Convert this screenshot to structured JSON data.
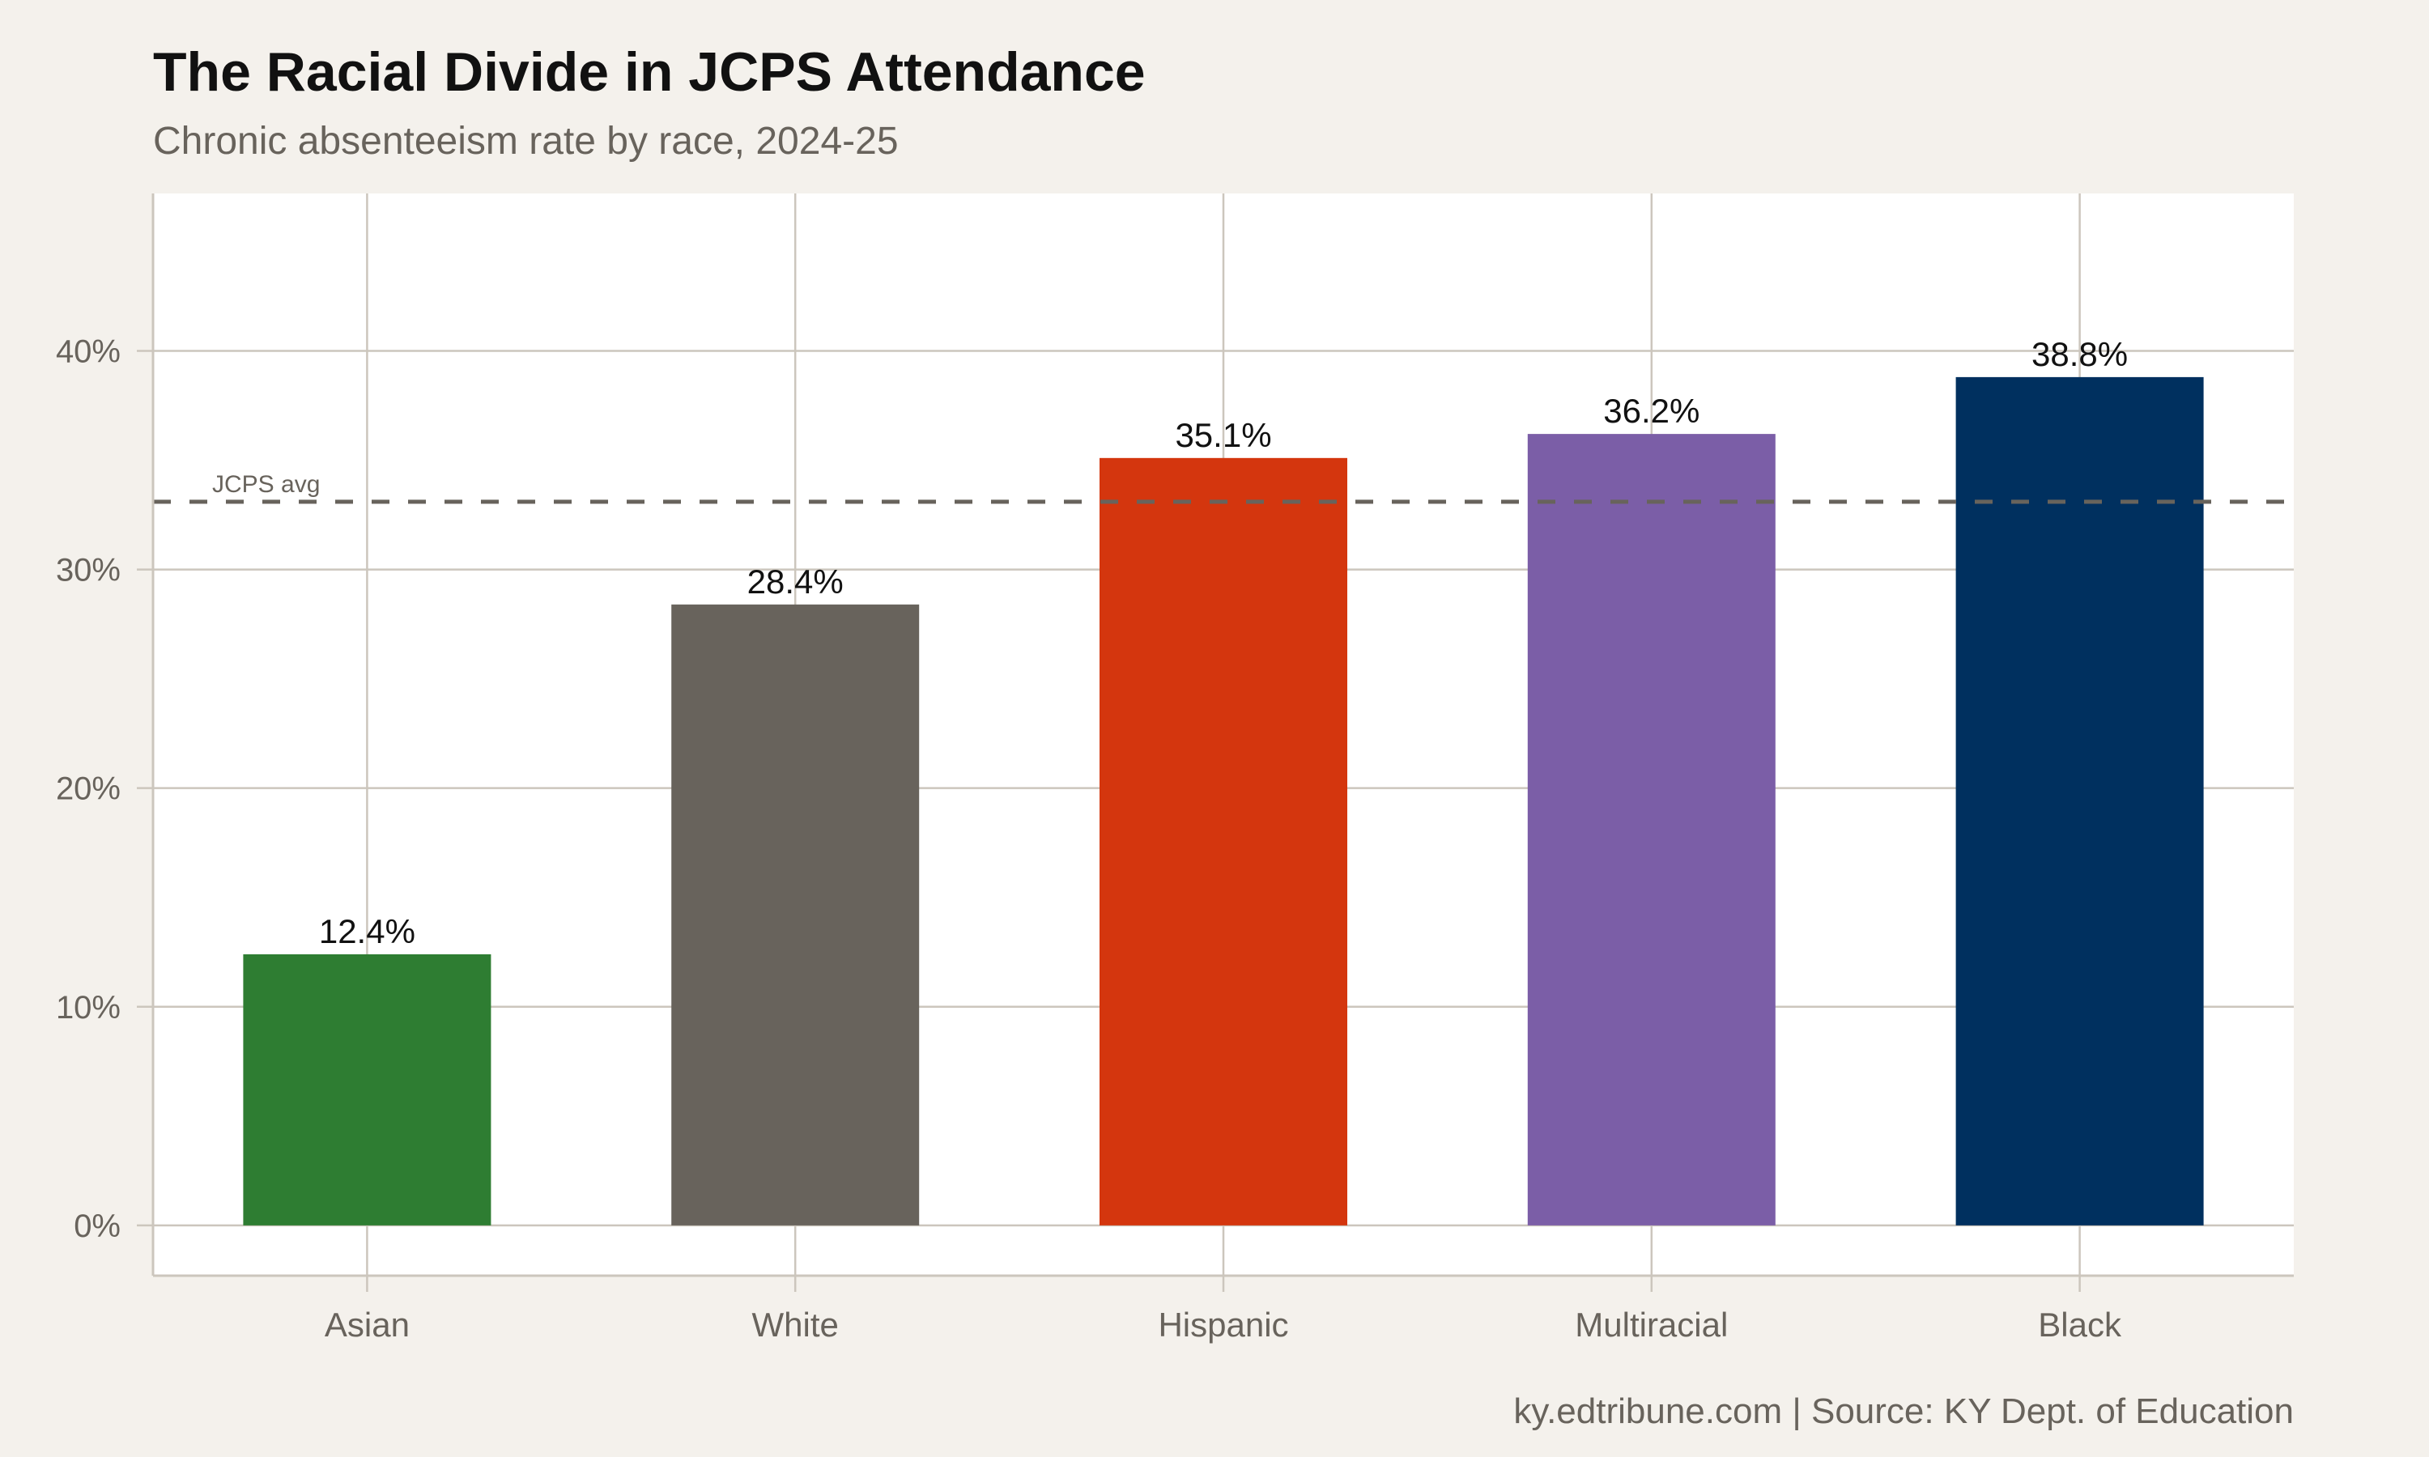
{
  "chart_data": {
    "type": "bar",
    "title": "The Racial Divide in JCPS Attendance",
    "subtitle": "Chronic absenteeism rate by race, 2024-25",
    "caption": "ky.edtribune.com | Source: KY Dept. of Education",
    "xlabel": "",
    "ylabel": "",
    "categories": [
      "Asian",
      "White",
      "Hispanic",
      "Multiracial",
      "Black"
    ],
    "values": [
      12.4,
      28.4,
      35.1,
      36.2,
      38.8
    ],
    "data_labels": [
      "12.4%",
      "28.4%",
      "35.1%",
      "36.2%",
      "38.8%"
    ],
    "colors": [
      "#2e7d32",
      "#68635c",
      "#d4360e",
      "#7b5ea7",
      "#00305f"
    ],
    "ylim": [
      -2.3,
      47.2
    ],
    "yticks": [
      0,
      10,
      20,
      30,
      40
    ],
    "ytick_labels": [
      "0%",
      "10%",
      "20%",
      "30%",
      "40%"
    ],
    "grid": true,
    "reference_line": {
      "value": 33.1,
      "label": "JCPS avg",
      "style": "dashed",
      "color": "#68635c"
    }
  }
}
